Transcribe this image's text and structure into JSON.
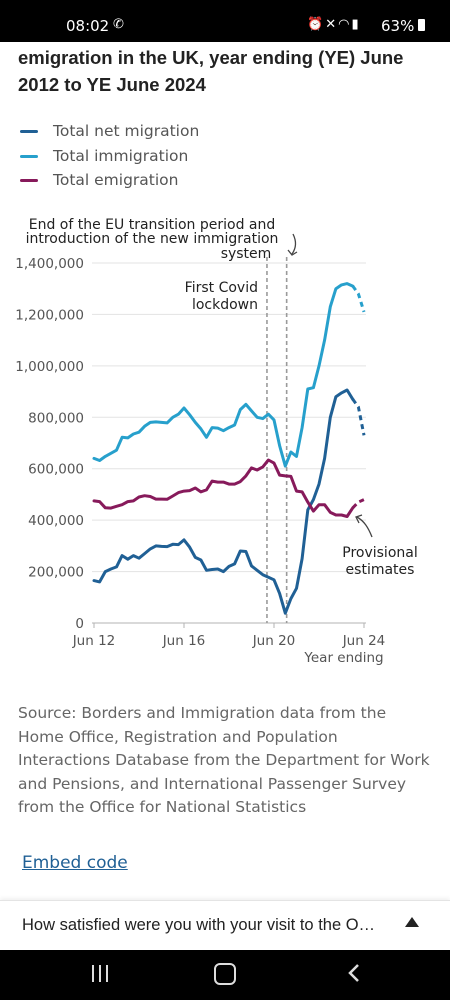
{
  "status_bar": {
    "time": "08:02",
    "left_icon": "whatsapp-icon",
    "right_icons": [
      "alarm-icon",
      "mute-icon",
      "wifi-icon",
      "signal-icon"
    ],
    "battery": "63%"
  },
  "chart_title": "emigration in the UK, year ending (YE) June 2012 to YE June 2024",
  "legend": [
    {
      "label": "Total net migration",
      "color": "#206095"
    },
    {
      "label": "Total immigration",
      "color": "#27a0cc"
    },
    {
      "label": "Total emigration",
      "color": "#871a5b"
    }
  ],
  "annotations": {
    "eu_transition": [
      "End of the EU transition period and",
      "introduction of the new immigration",
      "system"
    ],
    "covid": [
      "First Covid",
      "lockdown"
    ],
    "provisional": [
      "Provisional",
      "estimates"
    ],
    "x_axis_title": "Year ending"
  },
  "source_text": "Source: Borders and Immigration data from the Home Office, Registration and Population Interactions Database from the Department for Work and Pensions, and International Passenger Survey from the Office for National Statistics",
  "embed_label": "Embed code",
  "survey_text": "How satisfied were you with your visit to the O…",
  "chart_data": {
    "type": "line",
    "x_tick_labels": [
      "Jun 12",
      "Jun 16",
      "Jun 20",
      "Jun 24"
    ],
    "y_tick_labels": [
      "0",
      "200,000",
      "400,000",
      "600,000",
      "800,000",
      "1,000,000",
      "1,200,000",
      "1,400,000"
    ],
    "ylim": [
      0,
      1400000
    ],
    "xlim": [
      "2012 Q2",
      "2024 Q2"
    ],
    "grid": "horizontal",
    "x": [
      "2012 Q2",
      "2012 Q3",
      "2012 Q4",
      "2013 Q1",
      "2013 Q2",
      "2013 Q3",
      "2013 Q4",
      "2014 Q1",
      "2014 Q2",
      "2014 Q3",
      "2014 Q4",
      "2015 Q1",
      "2015 Q2",
      "2015 Q3",
      "2015 Q4",
      "2016 Q1",
      "2016 Q2",
      "2016 Q3",
      "2016 Q4",
      "2017 Q1",
      "2017 Q2",
      "2017 Q3",
      "2017 Q4",
      "2018 Q1",
      "2018 Q2",
      "2018 Q3",
      "2018 Q4",
      "2019 Q1",
      "2019 Q2",
      "2019 Q3",
      "2019 Q4",
      "2020 Q1",
      "2020 Q2",
      "2020 Q3",
      "2020 Q4",
      "2021 Q1",
      "2021 Q2",
      "2021 Q3",
      "2021 Q4",
      "2022 Q1",
      "2022 Q2",
      "2022 Q3",
      "2022 Q4",
      "2023 Q1",
      "2023 Q2",
      "2023 Q3",
      "2023 Q4",
      "2024 Q1",
      "2024 Q2"
    ],
    "provisional_from": "2023 Q4",
    "series": [
      {
        "name": "Total net migration",
        "values": [
          165000,
          160000,
          200000,
          210000,
          218000,
          262000,
          248000,
          262000,
          252000,
          270000,
          288000,
          300000,
          298000,
          297000,
          306000,
          305000,
          323000,
          295000,
          255000,
          245000,
          205000,
          208000,
          210000,
          200000,
          220000,
          230000,
          280000,
          278000,
          222000,
          205000,
          188000,
          178000,
          168000,
          115000,
          38000,
          95000,
          135000,
          250000,
          440000,
          480000,
          540000,
          640000,
          800000,
          880000,
          895000,
          906000,
          870000,
          840000,
          730000
        ]
      },
      {
        "name": "Total immigration",
        "values": [
          640000,
          632000,
          648000,
          660000,
          672000,
          722000,
          720000,
          735000,
          742000,
          765000,
          780000,
          782000,
          780000,
          778000,
          800000,
          812000,
          836000,
          810000,
          780000,
          755000,
          722000,
          760000,
          758000,
          748000,
          760000,
          770000,
          830000,
          850000,
          825000,
          800000,
          795000,
          812000,
          790000,
          690000,
          610000,
          665000,
          648000,
          760000,
          910000,
          915000,
          1000000,
          1100000,
          1230000,
          1300000,
          1315000,
          1320000,
          1310000,
          1280000,
          1210000
        ]
      },
      {
        "name": "Total emigration",
        "values": [
          475000,
          472000,
          448000,
          447000,
          454000,
          460000,
          472000,
          475000,
          490000,
          495000,
          492000,
          482000,
          482000,
          481000,
          494000,
          507000,
          513000,
          515000,
          525000,
          510000,
          518000,
          552000,
          548000,
          548000,
          540000,
          540000,
          550000,
          572000,
          603000,
          595000,
          607000,
          634000,
          622000,
          575000,
          572000,
          570000,
          513000,
          510000,
          470000,
          435000,
          460000,
          460000,
          430000,
          420000,
          420000,
          414000,
          448000,
          470000,
          480000
        ]
      }
    ]
  }
}
